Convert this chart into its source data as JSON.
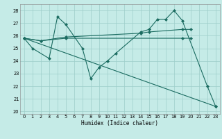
{
  "xlabel": "Humidex (Indice chaleur)",
  "xlim": [
    -0.5,
    23.5
  ],
  "ylim": [
    19.8,
    28.5
  ],
  "yticks": [
    20,
    21,
    22,
    23,
    24,
    25,
    26,
    27,
    28
  ],
  "xticks": [
    0,
    1,
    2,
    3,
    4,
    5,
    6,
    7,
    8,
    9,
    10,
    11,
    12,
    13,
    14,
    15,
    16,
    17,
    18,
    19,
    20,
    21,
    22,
    23
  ],
  "bg_color": "#c5ebe7",
  "grid_color": "#9dceca",
  "line_color": "#1a6b60",
  "line1_x": [
    0,
    1,
    3,
    4,
    5,
    7,
    8,
    9,
    10,
    11,
    14,
    15,
    16,
    17,
    18,
    19,
    22,
    23
  ],
  "line1_y": [
    25.8,
    25.0,
    24.2,
    27.5,
    26.9,
    25.0,
    22.6,
    23.5,
    24.0,
    24.6,
    26.3,
    26.5,
    27.3,
    27.3,
    28.0,
    27.2,
    22.0,
    20.4
  ],
  "line2_x": [
    0,
    2,
    5,
    19,
    20
  ],
  "line2_y": [
    25.8,
    25.6,
    25.8,
    25.8,
    25.8
  ],
  "line3_x": [
    0,
    2,
    5,
    14,
    15,
    19,
    20
  ],
  "line3_y": [
    25.8,
    25.6,
    25.9,
    26.2,
    26.3,
    26.5,
    26.5
  ],
  "line4_x": [
    0,
    23
  ],
  "line4_y": [
    25.8,
    20.4
  ]
}
